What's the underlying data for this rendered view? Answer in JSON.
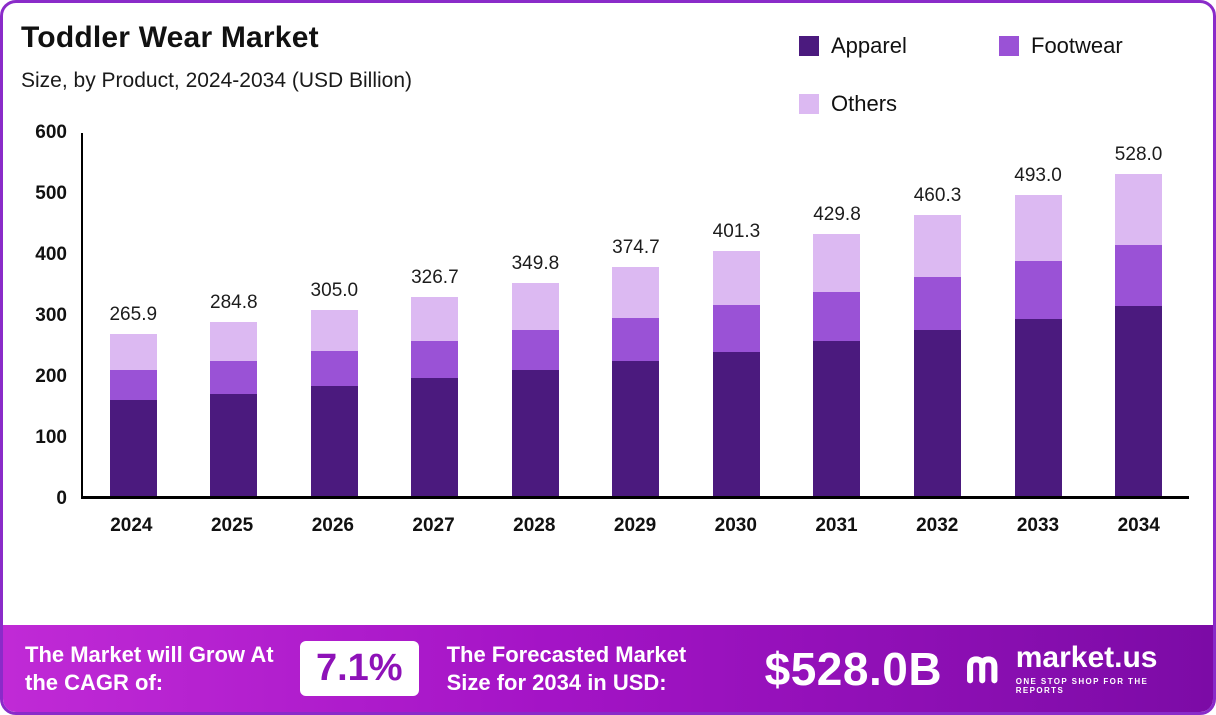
{
  "header": {
    "title": "Toddler Wear Market",
    "subtitle": "Size, by Product, 2024-2034 (USD Billion)"
  },
  "chart_data": {
    "type": "bar",
    "stacked": true,
    "title": "Toddler Wear Market Size, by Product, 2024-2034 (USD Billion)",
    "categories": [
      "2024",
      "2025",
      "2026",
      "2027",
      "2028",
      "2029",
      "2030",
      "2031",
      "2032",
      "2033",
      "2034"
    ],
    "series": [
      {
        "name": "Apparel",
        "color": "#4b1a7e",
        "values": [
          156.9,
          168.0,
          180.0,
          192.8,
          206.4,
          221.1,
          236.8,
          253.6,
          271.6,
          290.9,
          311.5
        ]
      },
      {
        "name": "Footwear",
        "color": "#9a52d6",
        "values": [
          50.5,
          54.1,
          58.0,
          62.1,
          66.5,
          71.2,
          76.2,
          81.7,
          87.5,
          93.7,
          100.3
        ]
      },
      {
        "name": "Others",
        "color": "#dcb9f2",
        "values": [
          58.5,
          62.7,
          67.0,
          71.8,
          76.9,
          82.4,
          88.3,
          94.5,
          101.2,
          108.4,
          116.2
        ]
      }
    ],
    "totals": [
      265.9,
      284.8,
      305.0,
      326.7,
      349.8,
      374.7,
      401.3,
      429.8,
      460.3,
      493.0,
      528.0
    ],
    "xlabel": "",
    "ylabel": "",
    "ylim": [
      0,
      600
    ],
    "yticks": [
      0,
      100,
      200,
      300,
      400,
      500,
      600
    ],
    "grid": false,
    "legend_position": "top-right"
  },
  "banner": {
    "cagr_label": "The Market will Grow At the CAGR of:",
    "cagr_value": "7.1%",
    "forecast_label": "The Forecasted Market Size for 2034 in USD:",
    "forecast_value": "$528.0B",
    "logo_text": "market.us",
    "logo_tagline": "ONE STOP SHOP FOR THE REPORTS"
  }
}
